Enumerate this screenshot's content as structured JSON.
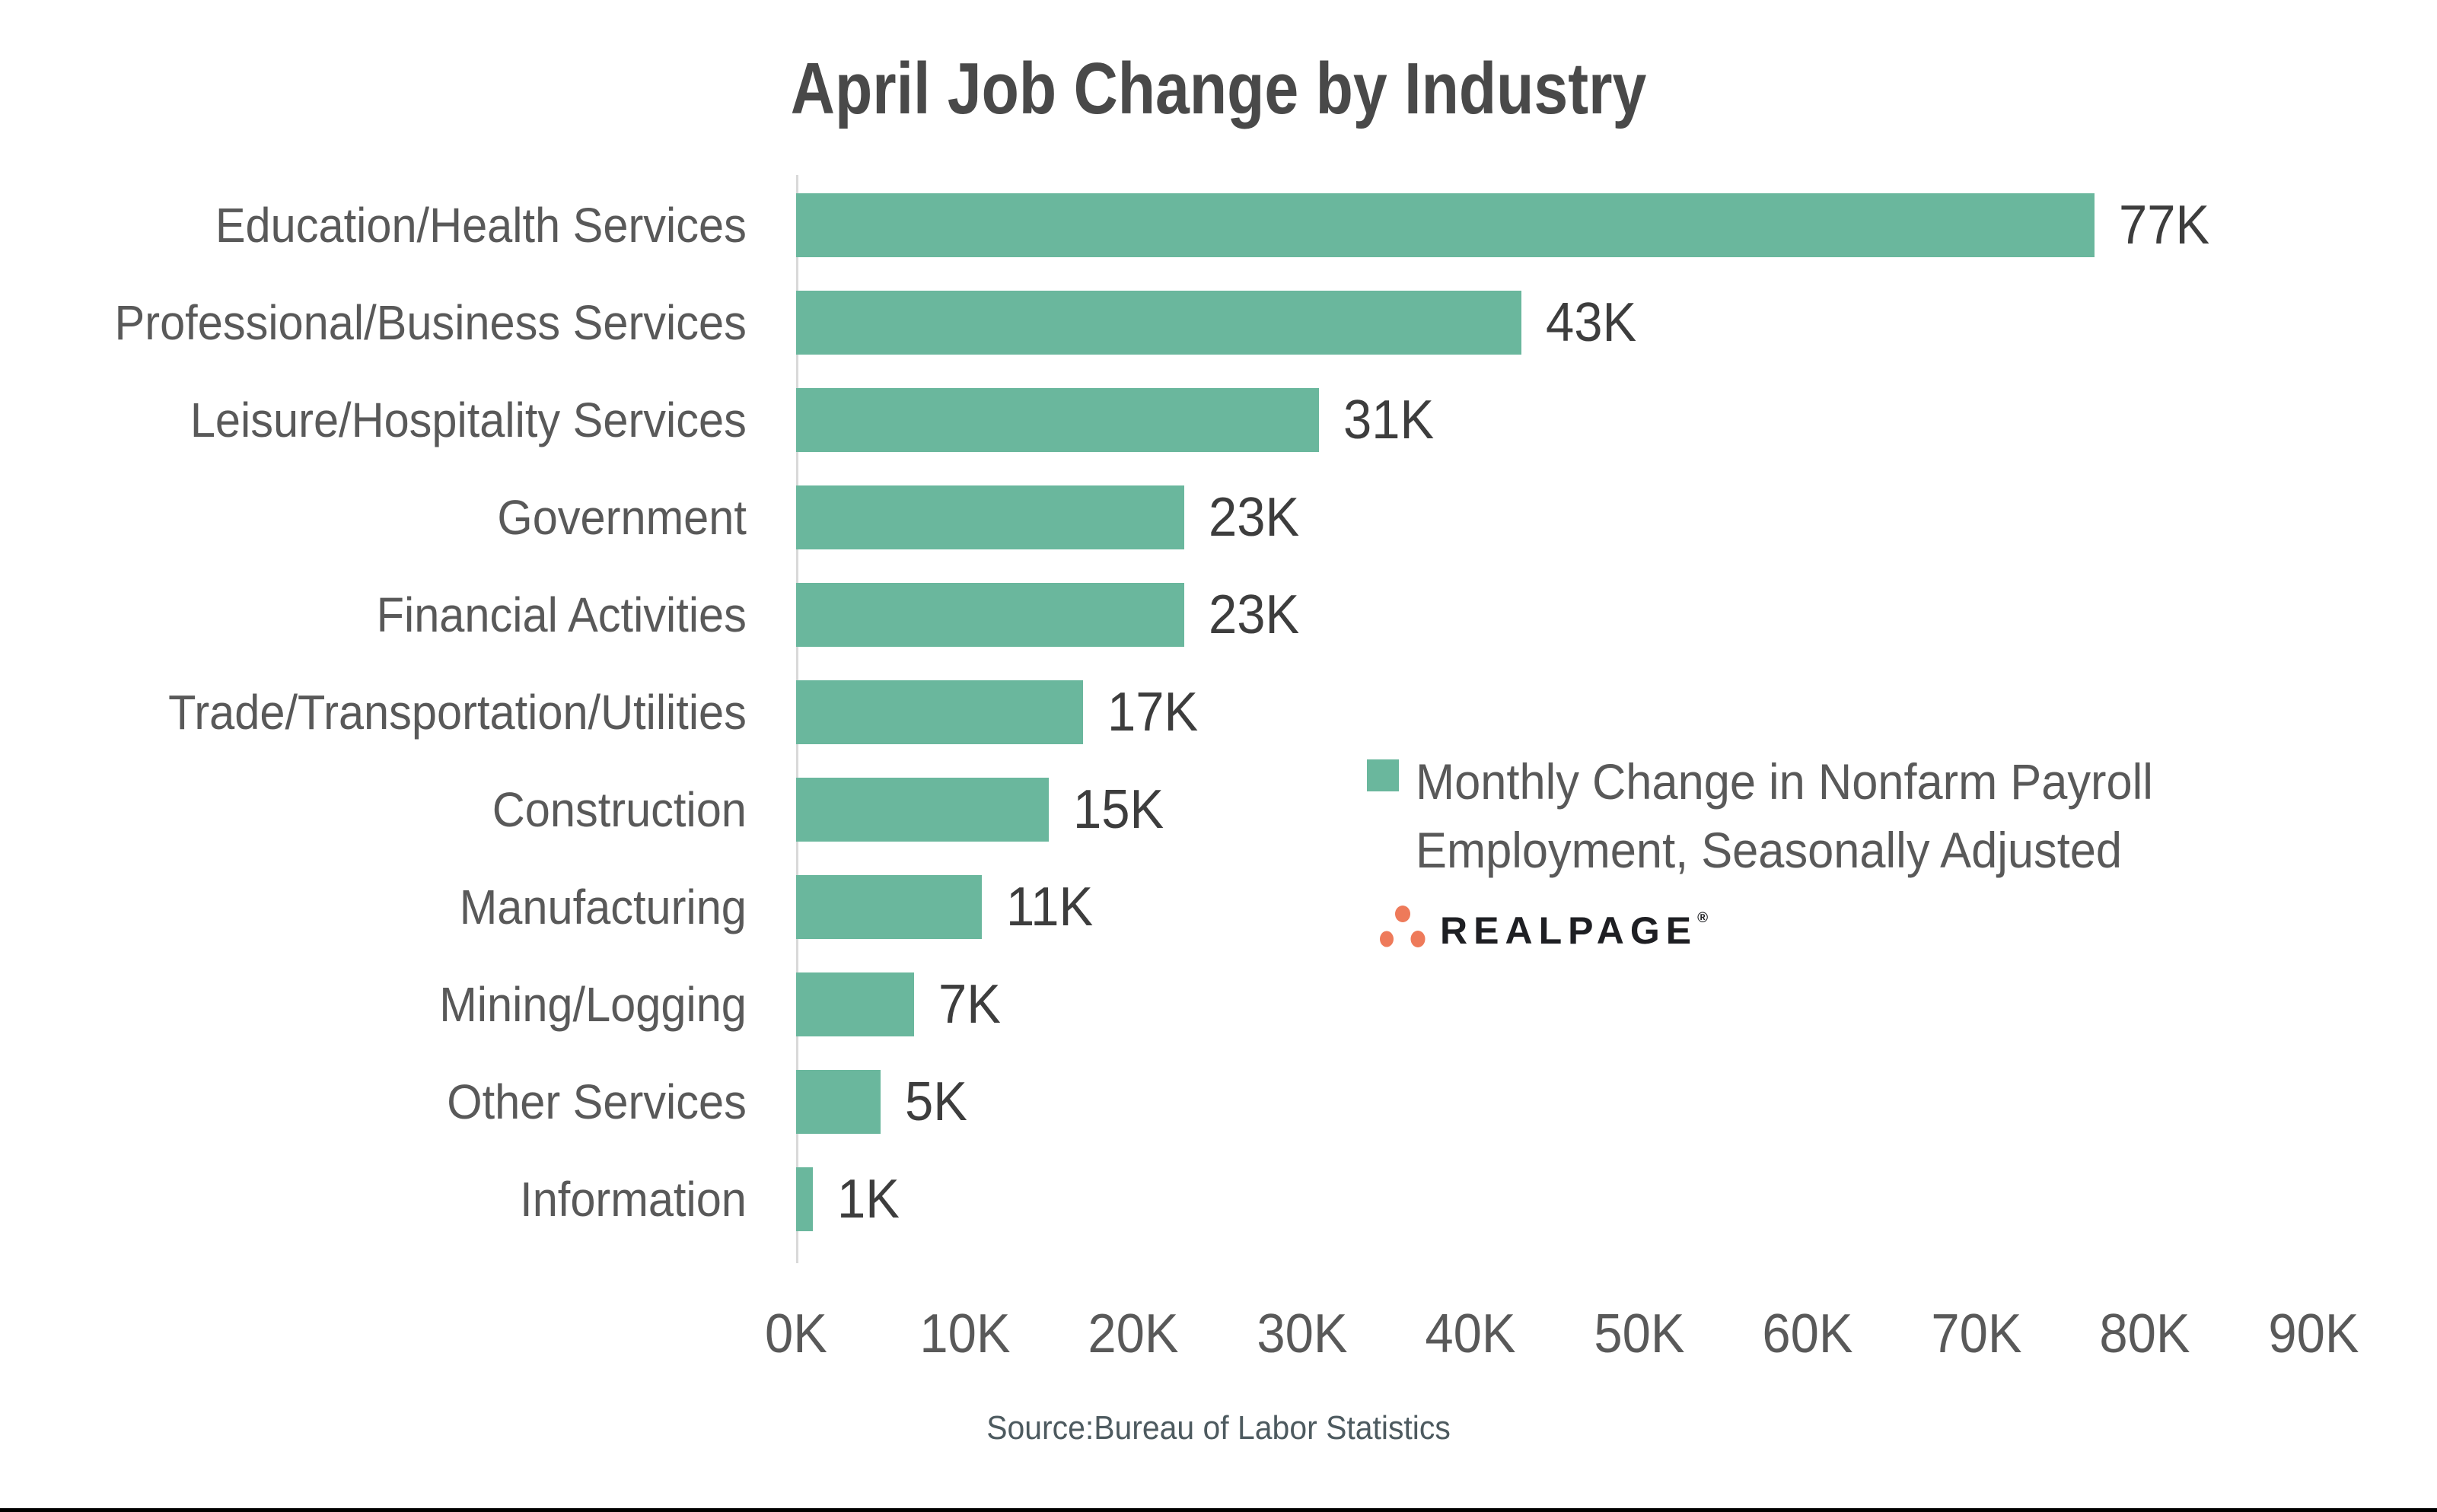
{
  "title": "April Job Change by Industry",
  "chart_data": {
    "type": "bar",
    "orientation": "horizontal",
    "categories": [
      "Education/Health Services",
      "Professional/Business Services",
      "Leisure/Hospitality Services",
      "Government",
      "Financial Activities",
      "Trade/Transportation/Utilities",
      "Construction",
      "Manufacturing",
      "Mining/Logging",
      "Other Services",
      "Information"
    ],
    "values": [
      77,
      43,
      31,
      23,
      23,
      17,
      15,
      11,
      7,
      5,
      1
    ],
    "value_labels": [
      "77K",
      "43K",
      "31K",
      "23K",
      "23K",
      "17K",
      "15K",
      "11K",
      "7K",
      "5K",
      "1K"
    ],
    "x_ticks": [
      "0K",
      "10K",
      "20K",
      "30K",
      "40K",
      "50K",
      "60K",
      "70K",
      "80K",
      "90K"
    ],
    "xlim": [
      0,
      90
    ],
    "xlabel": "",
    "ylabel": "",
    "grid": false,
    "legend_position": "center-right",
    "bar_color": "#6ab79d"
  },
  "legend": {
    "line1": "Monthly Change in Nonfarm Payroll",
    "line2": "Employment, Seasonally Adjusted"
  },
  "branding": {
    "logo_text": "REALPAGE",
    "registered_mark": "®",
    "dot_color": "#ee7a5a",
    "text_color": "#1e1f23"
  },
  "source_note": "Source:Bureau of Labor Statistics",
  "colors": {
    "bar": "#6ab79d",
    "axis_line": "#d9d9d9",
    "title_text": "#494949",
    "category_text": "#595959",
    "value_text": "#3d3d3d",
    "tick_text": "#595959",
    "source_text": "#4d5a5f",
    "bottom_rule": "#000000"
  }
}
